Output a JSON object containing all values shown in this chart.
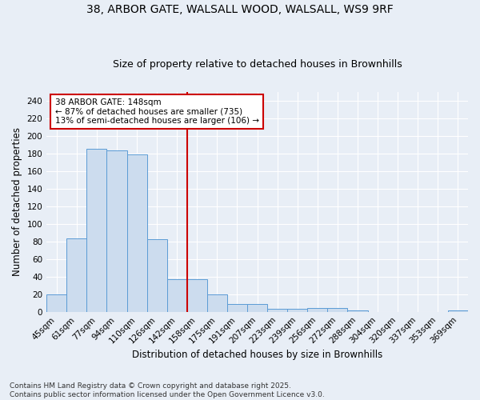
{
  "title": "38, ARBOR GATE, WALSALL WOOD, WALSALL, WS9 9RF",
  "subtitle": "Size of property relative to detached houses in Brownhills",
  "xlabel": "Distribution of detached houses by size in Brownhills",
  "ylabel": "Number of detached properties",
  "bar_color": "#ccdcee",
  "bar_edge_color": "#5b9bd5",
  "background_color": "#e8eef6",
  "grid_color": "#ffffff",
  "categories": [
    "45sqm",
    "61sqm",
    "77sqm",
    "94sqm",
    "110sqm",
    "126sqm",
    "142sqm",
    "158sqm",
    "175sqm",
    "191sqm",
    "207sqm",
    "223sqm",
    "239sqm",
    "256sqm",
    "272sqm",
    "288sqm",
    "304sqm",
    "320sqm",
    "337sqm",
    "353sqm",
    "369sqm"
  ],
  "values": [
    20,
    83,
    185,
    183,
    179,
    82,
    37,
    37,
    20,
    9,
    9,
    3,
    3,
    4,
    4,
    2,
    0,
    0,
    0,
    0,
    2
  ],
  "ylim": [
    0,
    250
  ],
  "yticks": [
    0,
    20,
    40,
    60,
    80,
    100,
    120,
    140,
    160,
    180,
    200,
    220,
    240
  ],
  "property_label": "38 ARBOR GATE: 148sqm",
  "annotation_line1": "← 87% of detached houses are smaller (735)",
  "annotation_line2": "13% of semi-detached houses are larger (106) →",
  "vline_index": 6.5,
  "vline_color": "#cc0000",
  "footer_line1": "Contains HM Land Registry data © Crown copyright and database right 2025.",
  "footer_line2": "Contains public sector information licensed under the Open Government Licence v3.0.",
  "title_fontsize": 10,
  "subtitle_fontsize": 9,
  "axis_label_fontsize": 8.5,
  "tick_fontsize": 7.5,
  "annotation_fontsize": 7.5,
  "footer_fontsize": 6.5
}
